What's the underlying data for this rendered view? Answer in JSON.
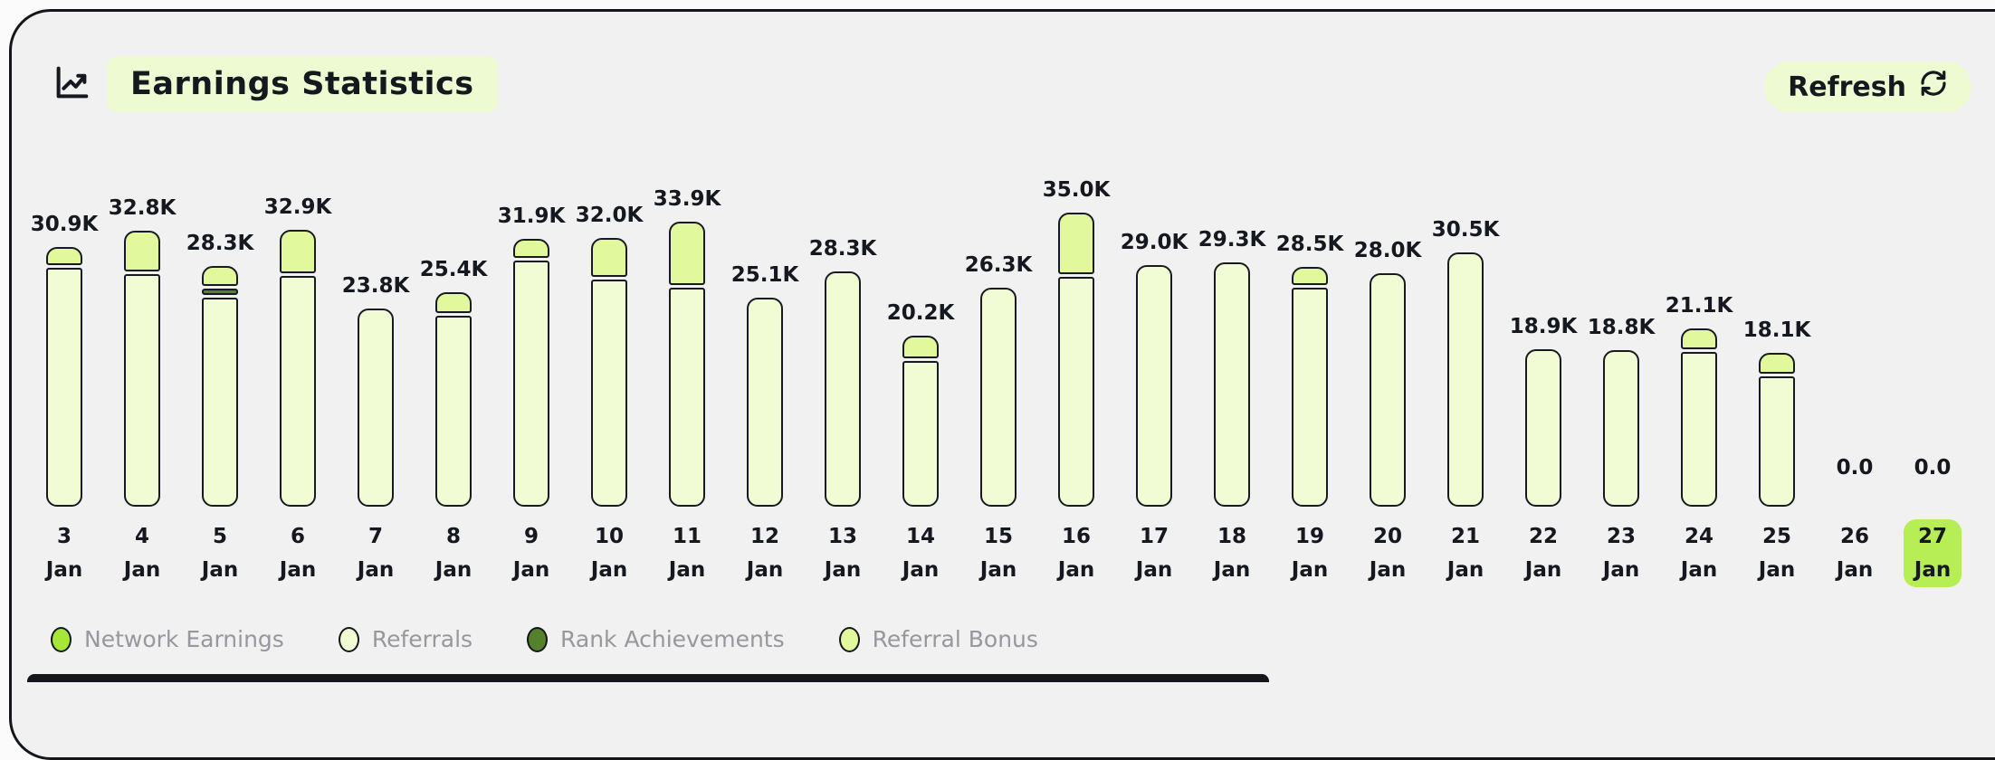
{
  "header": {
    "title": "Earnings Statistics",
    "refresh_label": "Refresh"
  },
  "legend": {
    "items": [
      {
        "label": "Network Earnings",
        "color": "#a5e637"
      },
      {
        "label": "Referrals",
        "color": "#f1fcd5"
      },
      {
        "label": "Rank Achievements",
        "color": "#55802c"
      },
      {
        "label": "Referral Bonus",
        "color": "#e2f89d"
      }
    ]
  },
  "chart_data": {
    "type": "bar",
    "stacked": true,
    "title": "Earnings Statistics",
    "unit": "K",
    "ymax": 35.0,
    "grid": false,
    "legend_position": "bottom",
    "month": "Jan",
    "days": [
      "3",
      "4",
      "5",
      "6",
      "7",
      "8",
      "9",
      "10",
      "11",
      "12",
      "13",
      "14",
      "15",
      "16",
      "17",
      "18",
      "19",
      "20",
      "21",
      "22",
      "23",
      "24",
      "25",
      "26",
      "27"
    ],
    "totals_labels": [
      "30.9K",
      "32.8K",
      "28.3K",
      "32.9K",
      "23.8K",
      "25.4K",
      "31.9K",
      "32.0K",
      "33.9K",
      "25.1K",
      "28.3K",
      "20.2K",
      "26.3K",
      "35.0K",
      "29.0K",
      "29.3K",
      "28.5K",
      "28.0K",
      "30.5K",
      "18.9K",
      "18.8K",
      "21.1K",
      "18.1K",
      "0.0",
      "0.0"
    ],
    "selected_day": "27",
    "stack_order": [
      "Referrals",
      "Rank Achievements",
      "Referral Bonus"
    ],
    "series": [
      {
        "name": "Referrals",
        "color": "#f1fcd5",
        "values": [
          28.7,
          27.9,
          25.1,
          27.7,
          23.8,
          22.9,
          29.6,
          27.3,
          26.3,
          25.1,
          28.3,
          17.5,
          26.3,
          27.6,
          29.0,
          29.3,
          26.3,
          28.0,
          30.5,
          18.9,
          18.8,
          18.6,
          15.6,
          0,
          0
        ]
      },
      {
        "name": "Rank Achievements",
        "color": "#55802c",
        "values": [
          0,
          0,
          0.8,
          0,
          0,
          0,
          0,
          0,
          0,
          0,
          0,
          0,
          0,
          0,
          0,
          0,
          0,
          0,
          0,
          0,
          0,
          0,
          0,
          0,
          0
        ]
      },
      {
        "name": "Referral Bonus",
        "color": "#e2f89d",
        "values": [
          2.2,
          4.9,
          2.4,
          5.2,
          0,
          2.5,
          2.3,
          4.7,
          7.6,
          0,
          0,
          2.7,
          0,
          7.4,
          0,
          0,
          2.2,
          0,
          0,
          0,
          0,
          2.5,
          2.5,
          0,
          0
        ]
      },
      {
        "name": "Network Earnings",
        "color": "#a5e637",
        "values": [
          0,
          0,
          0,
          0,
          0,
          0,
          0,
          0,
          0,
          0,
          0,
          0,
          0,
          0,
          0,
          0,
          0,
          0,
          0,
          0,
          0,
          0,
          0,
          0,
          0
        ]
      }
    ]
  },
  "theme": {
    "page_bg": "#fbfbfb",
    "card_bg": "#f1f1f2",
    "ink": "#15181e",
    "bar_border": "#171a21",
    "title_highlight_bg": "#eefad2",
    "refresh_button_bg": "#eefad2",
    "selected_day_bg": "#b8ee55",
    "legend_text": "#97979d"
  }
}
